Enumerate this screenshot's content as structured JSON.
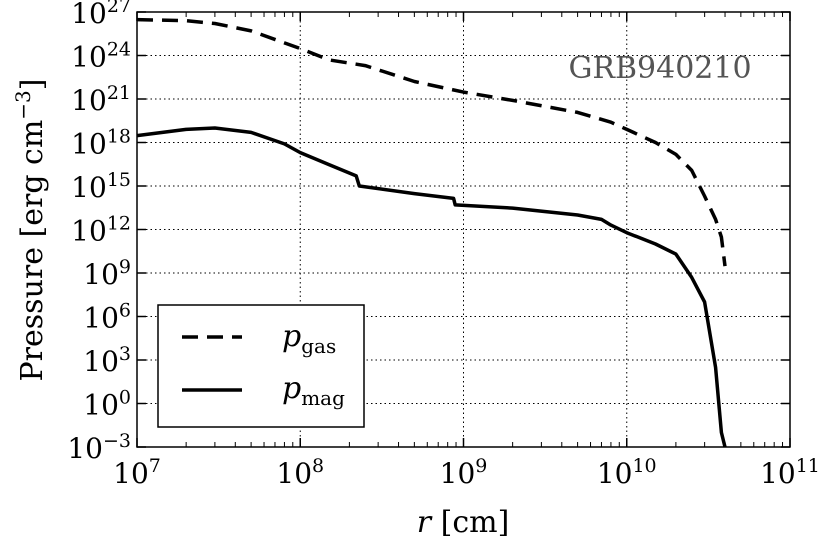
{
  "chart_data": {
    "type": "line",
    "xscale": "log",
    "yscale": "log",
    "xlim": [
      10000000,
      100000000000
    ],
    "ylim": [
      0.001,
      1e+27
    ],
    "grid": true,
    "legend_position": "bottom-left",
    "xlabel_var": "r",
    "xlabel_unit": "[cm]",
    "ylabel": "Pressure [erg cm",
    "ylabel_sup": "−3",
    "ylabel_close": "]",
    "annotation": "GRB940210",
    "x_ticks": [
      {
        "base": "10",
        "exp": "7"
      },
      {
        "base": "10",
        "exp": "8"
      },
      {
        "base": "10",
        "exp": "9"
      },
      {
        "base": "10",
        "exp": "10"
      },
      {
        "base": "10",
        "exp": "11"
      }
    ],
    "y_ticks": [
      {
        "base": "10",
        "exp": "−3"
      },
      {
        "base": "10",
        "exp": "0"
      },
      {
        "base": "10",
        "exp": "3"
      },
      {
        "base": "10",
        "exp": "6"
      },
      {
        "base": "10",
        "exp": "9"
      },
      {
        "base": "10",
        "exp": "12"
      },
      {
        "base": "10",
        "exp": "15"
      },
      {
        "base": "10",
        "exp": "18"
      },
      {
        "base": "10",
        "exp": "21"
      },
      {
        "base": "10",
        "exp": "24"
      },
      {
        "base": "10",
        "exp": "27"
      }
    ],
    "series": [
      {
        "name": "p",
        "sub": "gas",
        "style": "dashed",
        "color": "#000000",
        "x": [
          10000000,
          20000000,
          30000000,
          50000000,
          100000000,
          150000000,
          250000000,
          500000000,
          1000000000,
          2000000000,
          5000000000,
          8000000000,
          10000000000,
          15000000000,
          20000000000,
          25000000000,
          30000000000,
          35000000000,
          38000000000,
          40000000000
        ],
        "y": [
          3e+26,
          2.5e+26,
          1.6e+26,
          5e+25,
          3e+24,
          5e+23,
          2e+23,
          1.6e+22,
          3e+21,
          8e+20,
          1.2e+20,
          2.5e+19,
          8e+18,
          1e+18,
          1.5e+17,
          1.2e+16,
          200000000000000.0,
          5000000000000.0,
          300000000000.0,
          3000000000.0
        ]
      },
      {
        "name": "p",
        "sub": "mag",
        "style": "solid",
        "color": "#000000",
        "x": [
          10000000,
          20000000,
          30000000,
          50000000,
          80000000,
          100000000,
          150000000,
          220000000,
          230000000,
          500000000,
          870000000,
          890000000,
          2000000000,
          5000000000,
          7000000000,
          8000000000,
          10000000000,
          15000000000,
          20000000000,
          25000000000,
          30000000000,
          35000000000,
          38000000000,
          40000000000
        ],
        "y": [
          3e+18,
          8e+18,
          1e+19,
          5e+18,
          8e+17,
          2e+17,
          3e+16,
          5000000000000000.0,
          1000000000000000.0,
          300000000000000.0,
          140000000000000.0,
          50000000000000.0,
          30000000000000.0,
          10000000000000.0,
          5000000000000.0,
          2000000000000.0,
          600000000000.0,
          100000000000.0,
          20000000000.0,
          500000000.0,
          10000000,
          300,
          0.01,
          0.001
        ]
      }
    ]
  }
}
